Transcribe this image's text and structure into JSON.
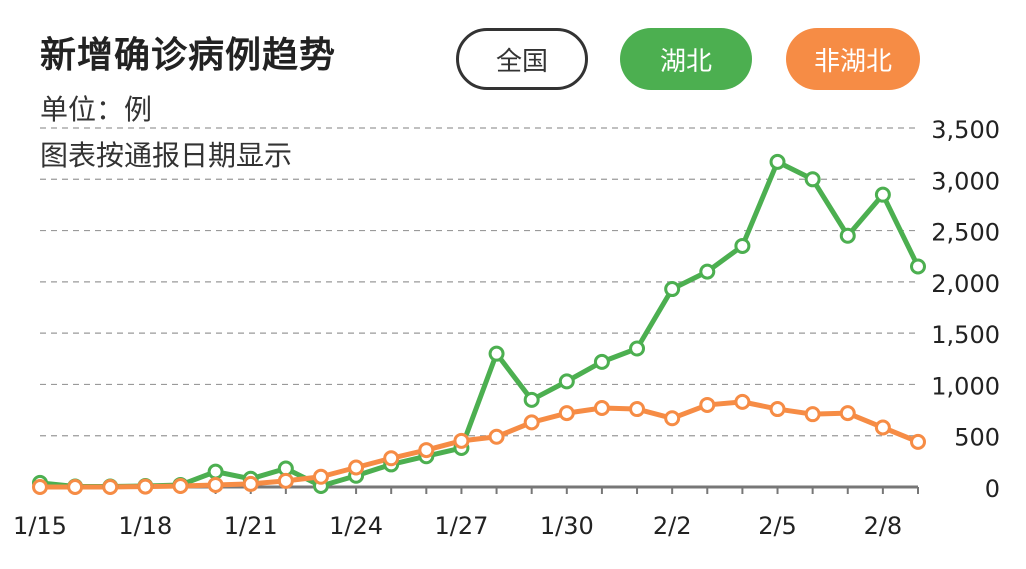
{
  "header": {
    "title": "新增确诊病例趋势",
    "unit": "单位：例",
    "note": "图表按通报日期显示"
  },
  "filters": [
    {
      "label": "全国",
      "color": "#333333",
      "selected": false
    },
    {
      "label": "湖北",
      "color": "#4caf50",
      "selected": true
    },
    {
      "label": "非湖北",
      "color": "#f68c45",
      "selected": true
    }
  ],
  "chart_data": {
    "type": "line",
    "title": "新增确诊病例趋势",
    "xlabel": "",
    "ylabel": "",
    "ylim": [
      0,
      3500
    ],
    "yticks": [
      0,
      500,
      1000,
      1500,
      2000,
      2500,
      3000,
      3500
    ],
    "ytick_labels": [
      "0",
      "500",
      "1,000",
      "1,500",
      "2,000",
      "2,500",
      "3,000",
      "3,500"
    ],
    "x": [
      "1/15",
      "1/16",
      "1/17",
      "1/18",
      "1/19",
      "1/20",
      "1/21",
      "1/22",
      "1/23",
      "1/24",
      "1/25",
      "1/26",
      "1/27",
      "1/28",
      "1/29",
      "1/30",
      "1/31",
      "2/1",
      "2/2",
      "2/3",
      "2/4",
      "2/5",
      "2/6",
      "2/7",
      "2/8",
      "2/9"
    ],
    "xtick_labels": [
      "1/15",
      "1/18",
      "1/21",
      "1/24",
      "1/27",
      "1/30",
      "2/2",
      "2/5",
      "2/8"
    ],
    "grid": true,
    "series": [
      {
        "name": "湖北",
        "color": "#4caf50",
        "values": [
          40,
          5,
          5,
          10,
          20,
          150,
          80,
          180,
          10,
          110,
          220,
          300,
          380,
          1300,
          850,
          1030,
          1220,
          1350,
          1930,
          2100,
          2350,
          3170,
          3000,
          2450,
          2850,
          2150
        ]
      },
      {
        "name": "非湖北",
        "color": "#f68c45",
        "values": [
          0,
          0,
          0,
          4,
          10,
          20,
          30,
          60,
          100,
          190,
          280,
          360,
          450,
          490,
          630,
          720,
          770,
          760,
          670,
          800,
          830,
          760,
          710,
          720,
          580,
          440
        ]
      }
    ]
  }
}
